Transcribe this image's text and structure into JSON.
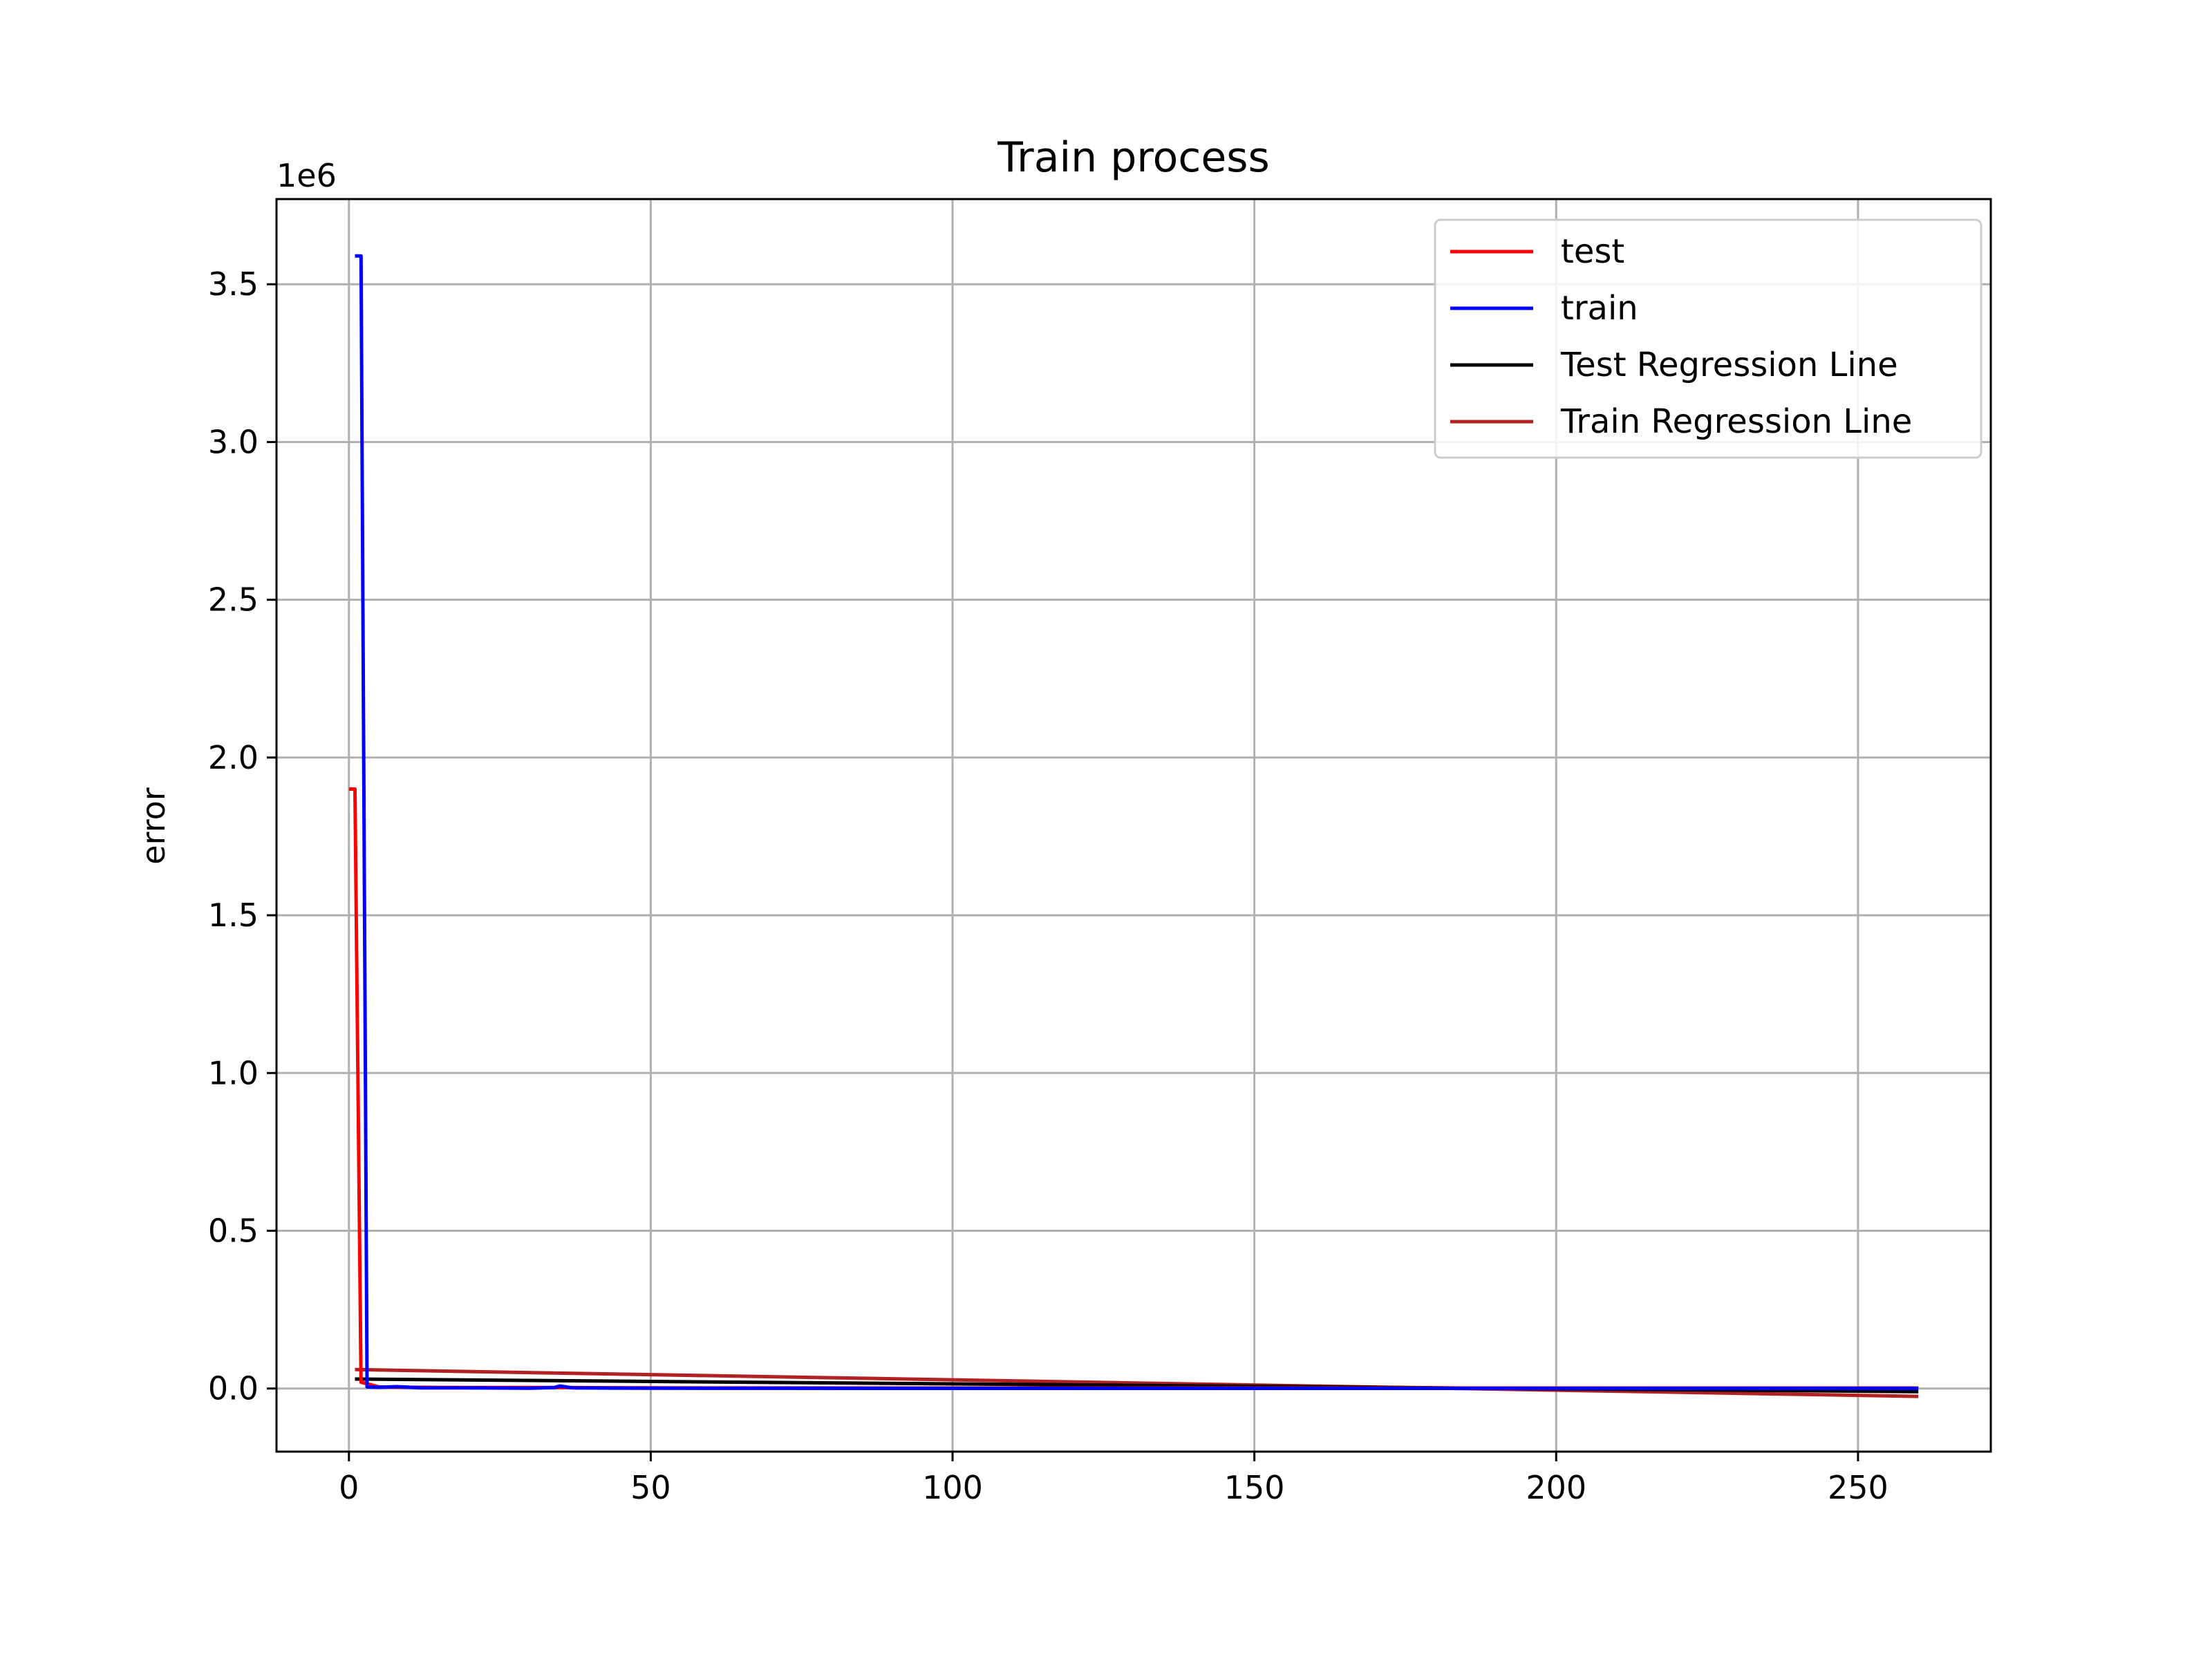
{
  "chart_data": {
    "type": "line",
    "title": "Train process",
    "xlabel": "",
    "ylabel": "error",
    "y_offset_label": "1e6",
    "y_scale": 1000000,
    "xlim": [
      -12,
      272
    ],
    "ylim": [
      -200000,
      3770000
    ],
    "x_ticks": [
      0,
      50,
      100,
      150,
      200,
      250
    ],
    "x_tick_labels": [
      "0",
      "50",
      "100",
      "150",
      "200",
      "250"
    ],
    "y_ticks": [
      0,
      500000,
      1000000,
      1500000,
      2000000,
      2500000,
      3000000,
      3500000
    ],
    "y_tick_labels": [
      "0.0",
      "0.5",
      "1.0",
      "1.5",
      "2.0",
      "2.5",
      "3.0",
      "3.5"
    ],
    "grid": true,
    "legend_position": "top-right",
    "series": [
      {
        "name": "test",
        "color": "#ff0000",
        "x": [
          0,
          1,
          2,
          5,
          10,
          20,
          35,
          50,
          100,
          150,
          200,
          260
        ],
        "y": [
          1900000,
          1900000,
          20000,
          5000,
          4000,
          3000,
          3000,
          2000,
          1500,
          1500,
          1500,
          1500
        ]
      },
      {
        "name": "train",
        "color": "#0000ff",
        "x": [
          1,
          2,
          3,
          5,
          8,
          10,
          12,
          20,
          30,
          34,
          35,
          37,
          50,
          100,
          150,
          200,
          260
        ],
        "y": [
          3590000,
          3590000,
          5000,
          4000,
          6000,
          4000,
          2000,
          2000,
          1000,
          3000,
          8000,
          2000,
          1000,
          500,
          500,
          500,
          500
        ]
      },
      {
        "name": "Test Regression Line",
        "color": "#000000",
        "x": [
          1,
          260
        ],
        "y": [
          30000,
          -10000
        ]
      },
      {
        "name": "Train Regression Line",
        "color": "#b22222",
        "x": [
          1,
          260
        ],
        "y": [
          60000,
          -25000
        ]
      }
    ]
  }
}
